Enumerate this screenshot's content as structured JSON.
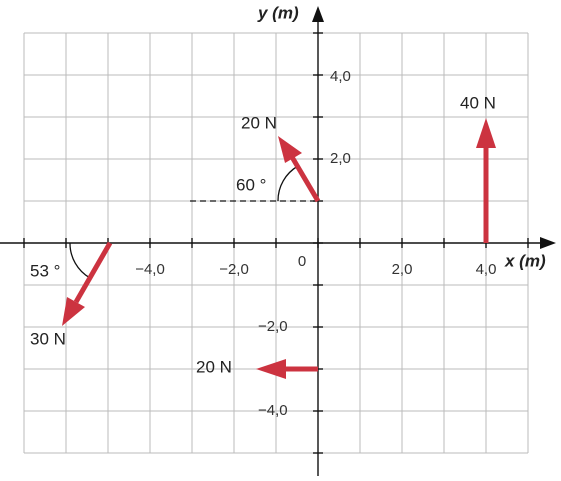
{
  "axes": {
    "x_label": "x (m)",
    "y_label": "y (m)",
    "x_ticks": [
      "−4,0",
      "−2,0",
      "0",
      "2,0",
      "4,0"
    ],
    "y_ticks": [
      "4,0",
      "2,0",
      "−2,0",
      "−4,0"
    ]
  },
  "forces": [
    {
      "label": "20 N"
    },
    {
      "label": "40 N"
    },
    {
      "label": "30 N"
    },
    {
      "label": "20 N"
    }
  ],
  "angles": [
    "60 °",
    "53 °"
  ]
}
